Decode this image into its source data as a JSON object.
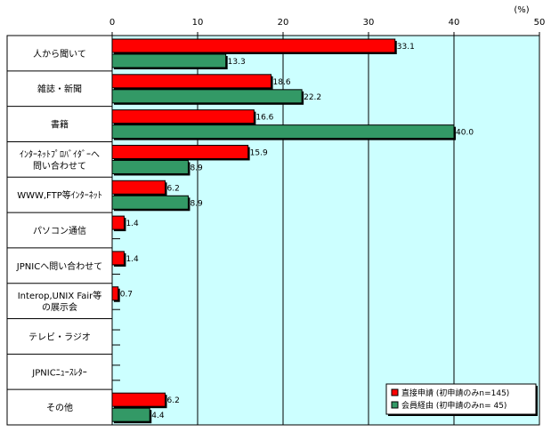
{
  "chart_data": {
    "type": "bar",
    "orientation": "horizontal",
    "unit_label": "(%)",
    "xlim": [
      0,
      50
    ],
    "x_ticks": [
      "0",
      "10",
      "20",
      "30",
      "40",
      "50"
    ],
    "grid": true,
    "legend_position": "bottom-right",
    "categories": [
      [
        "人から聞いて"
      ],
      [
        "雑誌・新聞"
      ],
      [
        "書籍"
      ],
      [
        "ｲﾝﾀｰﾈｯﾄﾌﾟﾛﾊﾞｲﾀﾞｰへ",
        "問い合わせて"
      ],
      [
        "WWW,FTP等ｲﾝﾀｰﾈｯﾄ"
      ],
      [
        "パソコン通信"
      ],
      [
        "JPNICへ問い合わせて"
      ],
      [
        "Interop,UNIX Fair等",
        "の展示会"
      ],
      [
        "テレビ・ラジオ"
      ],
      [
        "JPNICﾆｭｰｽﾚﾀｰ"
      ],
      [
        "その他"
      ]
    ],
    "series": [
      {
        "name": "直接申請 (初申請のみn=145)",
        "color": "#ff0000",
        "values": [
          33.1,
          18.6,
          16.6,
          15.9,
          6.2,
          1.4,
          1.4,
          0.7,
          null,
          null,
          6.2
        ],
        "labels": [
          "33.1",
          "18.6",
          "16.6",
          "15.9",
          "6.2",
          "1.4",
          "1.4",
          "0.7",
          "",
          "",
          "6.2"
        ]
      },
      {
        "name": "会員経由 (初申請のみn= 45)",
        "color": "#339966",
        "values": [
          13.3,
          22.2,
          40.0,
          8.9,
          8.9,
          null,
          null,
          null,
          null,
          null,
          4.4
        ],
        "labels": [
          "13.3",
          "22.2",
          "40.0",
          "8.9",
          "8.9",
          "",
          "",
          "",
          "",
          "",
          "4.4"
        ]
      }
    ],
    "plot_background": "#ccffff"
  }
}
